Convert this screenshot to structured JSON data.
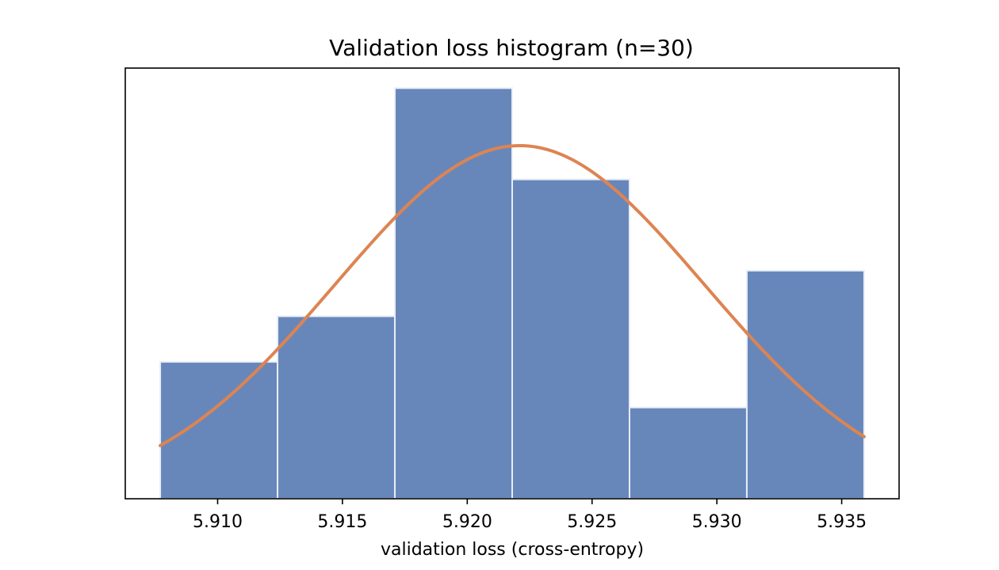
{
  "chart_data": {
    "type": "bar",
    "subtype": "histogram",
    "title": "Validation loss histogram (n=30)",
    "xlabel": "validation loss (cross-entropy)",
    "ylabel": "",
    "xlim": [
      5.9063,
      5.9373
    ],
    "ylim": [
      0,
      9.44
    ],
    "xticks": [
      5.91,
      5.915,
      5.92,
      5.925,
      5.93,
      5.935
    ],
    "xtick_labels": [
      "5.910",
      "5.915",
      "5.920",
      "5.925",
      "5.930",
      "5.935"
    ],
    "show_yticks": false,
    "grid": false,
    "bins": [
      {
        "start": 5.9077,
        "end": 5.9124,
        "count": 3
      },
      {
        "start": 5.9124,
        "end": 5.9171,
        "count": 4
      },
      {
        "start": 5.9171,
        "end": 5.9218,
        "count": 9
      },
      {
        "start": 5.9218,
        "end": 5.9265,
        "count": 7
      },
      {
        "start": 5.9265,
        "end": 5.9312,
        "count": 2
      },
      {
        "start": 5.9312,
        "end": 5.9359,
        "count": 5
      }
    ],
    "fit_curve": {
      "type": "normal",
      "mean": 5.9221,
      "std": 0.0074,
      "peak_count": 7.74,
      "x_range": [
        5.9077,
        5.9359
      ]
    },
    "colors": {
      "bars": "#6787bb",
      "bar_edge": "#e8eef6",
      "curve": "#dd8452",
      "axes": "#000000"
    }
  }
}
